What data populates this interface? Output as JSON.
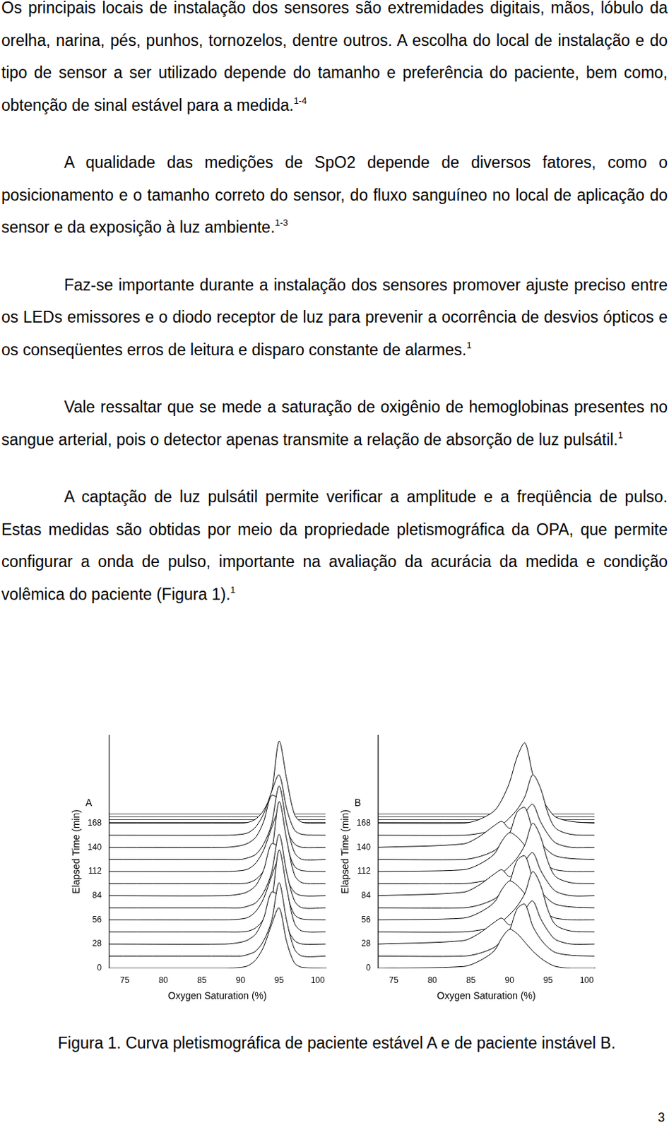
{
  "paragraphs": [
    {
      "text": "Os principais locais de instalação dos sensores são extremidades digitais, mãos, lóbulo da orelha, narina, pés, punhos, tornozelos, dentre outros. A escolha do local de instalação e do tipo de sensor a ser utilizado depende do tamanho e preferência do paciente, bem como, obtenção de sinal estável para a medida.",
      "ref": "1-4"
    },
    {
      "text": "A qualidade das medições de SpO2 depende de diversos fatores, como o posicionamento e o tamanho correto do sensor, do fluxo sanguíneo no local de aplicação do sensor e da exposição à luz ambiente.",
      "ref": "1-3"
    },
    {
      "text": "Faz-se importante durante a instalação dos sensores promover ajuste preciso entre os LEDs emissores e o diodo receptor de luz para prevenir a ocorrência de desvios ópticos e os conseqüentes erros de leitura e disparo constante de alarmes.",
      "ref": "1"
    },
    {
      "text": "Vale ressaltar que se mede a saturação de oxigênio de hemoglobinas presentes no sangue arterial, pois o detector apenas transmite a relação de absorção de luz pulsátil.",
      "ref": "1"
    },
    {
      "text": "A captação de luz pulsátil permite verificar a amplitude e a freqüência de pulso. Estas medidas são obtidas por meio da propriedade pletismográfica da OPA, que permite configurar a onda de pulso, importante na avaliação da acurácia da medida e condição volêmica do paciente (Figura 1).",
      "ref": "1"
    }
  ],
  "chart_data": [
    {
      "type": "line",
      "panel": "A",
      "x_label": "Oxygen Saturation (%)",
      "y_label": "Elapsed Time (min)",
      "x": [
        73,
        88,
        90,
        91,
        92,
        93,
        94,
        95,
        96,
        97,
        98,
        101
      ],
      "xlim": [
        73,
        101
      ],
      "xticks": [
        75,
        80,
        85,
        90,
        95,
        100
      ],
      "ylim": [
        0,
        270
      ],
      "yticks": [
        0,
        28,
        56,
        84,
        112,
        140,
        168
      ],
      "grid": false,
      "legend": false,
      "color": "#000000",
      "series": [
        {
          "values": [
            0,
            0,
            1,
            3,
            10,
            25,
            50,
            70,
            30,
            6,
            1,
            0
          ]
        },
        {
          "values": [
            14,
            14,
            14,
            16,
            20,
            32,
            54,
            99,
            54,
            22,
            14,
            14
          ]
        },
        {
          "values": [
            28,
            28,
            30,
            33,
            40,
            58,
            88,
            83,
            48,
            32,
            28,
            28
          ]
        },
        {
          "values": [
            42,
            42,
            42,
            43,
            47,
            57,
            77,
            137,
            92,
            52,
            43,
            42
          ]
        },
        {
          "values": [
            56,
            56,
            57,
            59,
            66,
            81,
            106,
            126,
            86,
            62,
            57,
            56
          ]
        },
        {
          "values": [
            70,
            70,
            70,
            72,
            76,
            88,
            110,
            155,
            110,
            78,
            70,
            70
          ]
        },
        {
          "values": [
            84,
            84,
            86,
            89,
            96,
            114,
            144,
            139,
            104,
            88,
            84,
            84
          ]
        },
        {
          "values": [
            98,
            98,
            98,
            99,
            103,
            113,
            133,
            193,
            148,
            108,
            99,
            98
          ]
        },
        {
          "values": [
            112,
            112,
            113,
            115,
            122,
            137,
            162,
            182,
            142,
            118,
            113,
            112
          ]
        },
        {
          "values": [
            126,
            126,
            126,
            128,
            132,
            144,
            166,
            211,
            166,
            134,
            126,
            126
          ]
        },
        {
          "values": [
            140,
            140,
            142,
            145,
            152,
            170,
            200,
            195,
            160,
            144,
            140,
            140
          ]
        },
        {
          "values": [
            154,
            154,
            155,
            157,
            164,
            179,
            204,
            224,
            184,
            160,
            155,
            154
          ]
        },
        {
          "values": [
            168,
            168,
            168,
            169,
            173,
            183,
            203,
            263,
            218,
            178,
            169,
            168
          ]
        }
      ]
    },
    {
      "type": "line",
      "panel": "B",
      "x_label": "Oxygen Saturation (%)",
      "y_label": "Elapsed Time (min)",
      "x": [
        73,
        84,
        86,
        88,
        89,
        90,
        91,
        92,
        93,
        94,
        95,
        96,
        98,
        101
      ],
      "xlim": [
        73,
        101
      ],
      "xticks": [
        75,
        80,
        85,
        90,
        95,
        100
      ],
      "ylim": [
        0,
        270
      ],
      "yticks": [
        0,
        28,
        56,
        84,
        112,
        140,
        168
      ],
      "grid": false,
      "legend": false,
      "color": "#000000",
      "series": [
        {
          "values": [
            0,
            2,
            8,
            20,
            35,
            45,
            40,
            30,
            20,
            12,
            6,
            2,
            0,
            0
          ]
        },
        {
          "values": [
            14,
            14,
            17,
            24,
            32,
            44,
            69,
            74,
            49,
            34,
            24,
            18,
            15,
            14
          ]
        },
        {
          "values": [
            28,
            32,
            40,
            53,
            58,
            50,
            56,
            68,
            78,
            58,
            43,
            33,
            28,
            28
          ]
        },
        {
          "values": [
            42,
            42,
            44,
            48,
            54,
            62,
            72,
            87,
            112,
            97,
            67,
            50,
            43,
            42
          ]
        },
        {
          "values": [
            56,
            58,
            64,
            76,
            91,
            101,
            96,
            86,
            76,
            68,
            62,
            58,
            56,
            56
          ]
        },
        {
          "values": [
            70,
            70,
            73,
            80,
            88,
            100,
            125,
            130,
            105,
            90,
            80,
            74,
            71,
            70
          ]
        },
        {
          "values": [
            84,
            88,
            96,
            109,
            114,
            106,
            112,
            124,
            134,
            114,
            99,
            89,
            84,
            84
          ]
        },
        {
          "values": [
            98,
            98,
            100,
            104,
            110,
            118,
            128,
            143,
            168,
            153,
            123,
            106,
            99,
            98
          ]
        },
        {
          "values": [
            112,
            114,
            120,
            132,
            147,
            157,
            152,
            142,
            132,
            124,
            118,
            114,
            112,
            112
          ]
        },
        {
          "values": [
            126,
            126,
            129,
            136,
            144,
            156,
            181,
            186,
            161,
            146,
            136,
            130,
            127,
            126
          ]
        },
        {
          "values": [
            140,
            144,
            152,
            165,
            170,
            162,
            168,
            180,
            190,
            170,
            155,
            145,
            140,
            140
          ]
        },
        {
          "values": [
            154,
            154,
            156,
            160,
            166,
            174,
            184,
            199,
            224,
            209,
            179,
            162,
            155,
            154
          ]
        },
        {
          "values": [
            168,
            168,
            172,
            182,
            195,
            215,
            245,
            261,
            225,
            200,
            185,
            175,
            170,
            168
          ]
        }
      ]
    }
  ],
  "caption": "Figura 1. Curva pletismográfica de paciente estável A e de paciente instável B.",
  "page_number": "3"
}
